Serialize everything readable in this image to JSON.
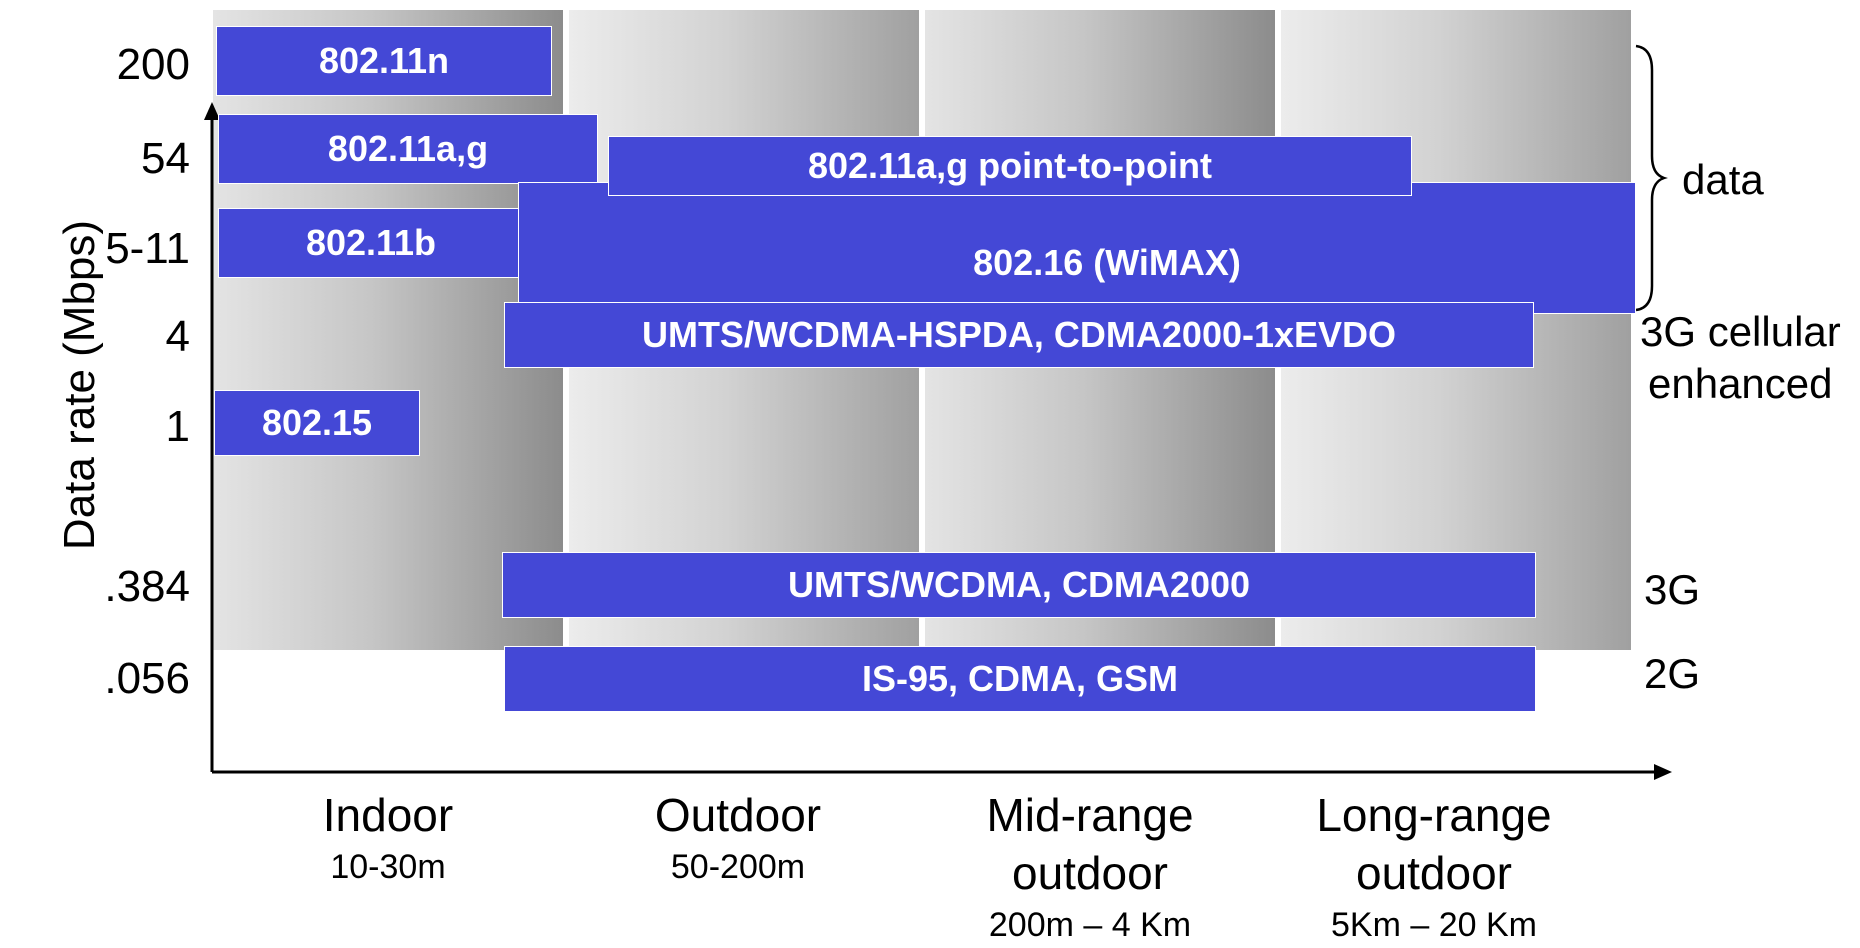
{
  "y_axis": {
    "title": "Data rate (Mbps)",
    "ticks": [
      "200",
      "54",
      "5-11",
      "4",
      "1",
      ".384",
      ".056"
    ]
  },
  "x_axis": {
    "categories": [
      {
        "name": "Indoor",
        "range": "10-30m"
      },
      {
        "name": "Outdoor",
        "range": "50-200m"
      },
      {
        "name": "Mid-range outdoor",
        "range": "200m – 4 Km"
      },
      {
        "name": "Long-range outdoor",
        "range": "5Km – 20 Km"
      }
    ]
  },
  "bars": {
    "n": "802.11n",
    "ag": "802.11a,g",
    "ag_ptp": "802.11a,g point-to-point",
    "b": "802.11b",
    "wimax": "802.16 (WiMAX)",
    "umts_hspda": "UMTS/WCDMA-HSPDA, CDMA2000-1xEVDO",
    "bt": "802.15",
    "umts": "UMTS/WCDMA, CDMA2000",
    "is95": "IS-95, CDMA, GSM"
  },
  "right_labels": {
    "data": "data",
    "g3_enh_line1": "3G cellular",
    "g3_enh_line2": "enhanced",
    "g3": "3G",
    "g2": "2G"
  },
  "colors": {
    "bar": "#4448d6"
  }
}
